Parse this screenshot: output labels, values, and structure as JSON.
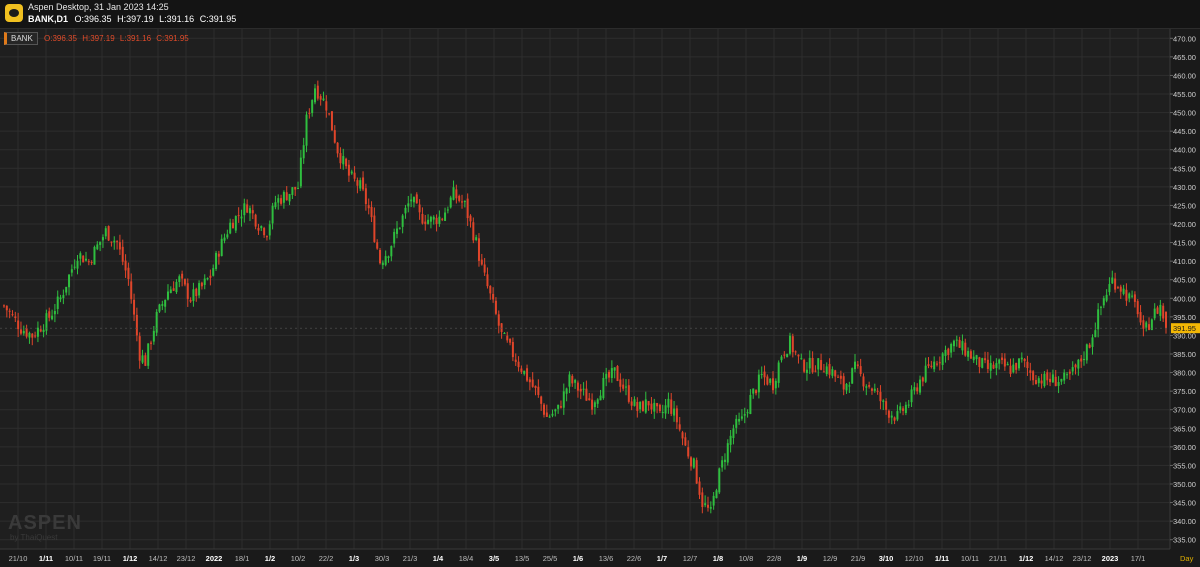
{
  "window": {
    "title": "Aspen Desktop, 31 Jan 2023 14:25",
    "symbol_label": "BANK,D1",
    "ohlc": {
      "o": "O:396.35",
      "h": "H:397.19",
      "l": "L:391.16",
      "c": "C:391.95"
    }
  },
  "legend": {
    "name": "BANK",
    "ohlc": {
      "o": "O:396.35",
      "h": "H:397.19",
      "l": "L:391.16",
      "c": "C:391.95"
    }
  },
  "watermark": {
    "brand": "ASPEN",
    "by": "by ThaiQuest"
  },
  "colors": {
    "background": "#1f1f1f",
    "grid": "#2e2e2e",
    "up": "#2fbf3f",
    "down": "#e0452a",
    "current_price_bg": "#f2b705",
    "legend_ohlc_text": "#e04b2a"
  },
  "chart_data": {
    "type": "candlestick",
    "symbol": "BANK",
    "timeframe": "D1",
    "current_price": 391.95,
    "current_price_label": "391.95",
    "ylim": [
      332.5,
      472.5
    ],
    "y_ticks": [
      335,
      340,
      345,
      350,
      355,
      360,
      365,
      370,
      375,
      380,
      385,
      390,
      395,
      400,
      405,
      410,
      415,
      420,
      425,
      430,
      435,
      440,
      445,
      450,
      455,
      460,
      465,
      470
    ],
    "y_tick_labels": [
      "335.00",
      "340.00",
      "345.00",
      "350.00",
      "355.00",
      "360.00",
      "365.00",
      "370.00",
      "375.00",
      "380.00",
      "385.00",
      "390.00",
      "395.00",
      "400.00",
      "405.00",
      "410.00",
      "415.00",
      "420.00",
      "425.00",
      "430.00",
      "435.00",
      "440.00",
      "445.00",
      "450.00",
      "455.00",
      "460.00",
      "465.00",
      "470.00"
    ],
    "x_labels": [
      {
        "label": "21/10",
        "bold": false
      },
      {
        "label": "1/11",
        "bold": true
      },
      {
        "label": "10/11",
        "bold": false
      },
      {
        "label": "19/11",
        "bold": false
      },
      {
        "label": "1/12",
        "bold": true
      },
      {
        "label": "14/12",
        "bold": false
      },
      {
        "label": "23/12",
        "bold": false
      },
      {
        "label": "2022",
        "bold": true
      },
      {
        "label": "18/1",
        "bold": false
      },
      {
        "label": "1/2",
        "bold": true
      },
      {
        "label": "10/2",
        "bold": false
      },
      {
        "label": "22/2",
        "bold": false
      },
      {
        "label": "1/3",
        "bold": true
      },
      {
        "label": "30/3",
        "bold": false
      },
      {
        "label": "21/3",
        "bold": false
      },
      {
        "label": "1/4",
        "bold": true
      },
      {
        "label": "18/4",
        "bold": false
      },
      {
        "label": "3/5",
        "bold": true
      },
      {
        "label": "13/5",
        "bold": false
      },
      {
        "label": "25/5",
        "bold": false
      },
      {
        "label": "1/6",
        "bold": true
      },
      {
        "label": "13/6",
        "bold": false
      },
      {
        "label": "22/6",
        "bold": false
      },
      {
        "label": "1/7",
        "bold": true
      },
      {
        "label": "12/7",
        "bold": false
      },
      {
        "label": "1/8",
        "bold": true
      },
      {
        "label": "10/8",
        "bold": false
      },
      {
        "label": "22/8",
        "bold": false
      },
      {
        "label": "1/9",
        "bold": true
      },
      {
        "label": "12/9",
        "bold": false
      },
      {
        "label": "21/9",
        "bold": false
      },
      {
        "label": "3/10",
        "bold": true
      },
      {
        "label": "12/10",
        "bold": false
      },
      {
        "label": "1/11",
        "bold": true
      },
      {
        "label": "10/11",
        "bold": false
      },
      {
        "label": "21/11",
        "bold": false
      },
      {
        "label": "1/12",
        "bold": true
      },
      {
        "label": "14/12",
        "bold": false
      },
      {
        "label": "23/12",
        "bold": false
      },
      {
        "label": "2023",
        "bold": true
      },
      {
        "label": "17/1",
        "bold": false
      }
    ],
    "x_axis_unit_label": "Day",
    "close_path": [
      [
        0,
        398
      ],
      [
        6,
        392
      ],
      [
        10,
        390
      ],
      [
        16,
        395
      ],
      [
        20,
        400
      ],
      [
        26,
        412
      ],
      [
        30,
        410
      ],
      [
        36,
        418
      ],
      [
        40,
        415
      ],
      [
        44,
        405
      ],
      [
        48,
        385
      ],
      [
        50,
        383
      ],
      [
        54,
        395
      ],
      [
        58,
        402
      ],
      [
        62,
        405
      ],
      [
        66,
        400
      ],
      [
        70,
        403
      ],
      [
        73,
        406
      ],
      [
        76,
        413
      ],
      [
        80,
        420
      ],
      [
        86,
        425
      ],
      [
        90,
        420
      ],
      [
        93,
        418
      ],
      [
        96,
        426
      ],
      [
        100,
        428
      ],
      [
        104,
        430
      ],
      [
        107,
        448
      ],
      [
        110,
        457
      ],
      [
        114,
        452
      ],
      [
        118,
        440
      ],
      [
        122,
        433
      ],
      [
        126,
        430
      ],
      [
        129,
        424
      ],
      [
        133,
        410
      ],
      [
        136,
        413
      ],
      [
        140,
        420
      ],
      [
        144,
        427
      ],
      [
        147,
        422
      ],
      [
        151,
        421
      ],
      [
        155,
        422
      ],
      [
        159,
        428
      ],
      [
        163,
        425
      ],
      [
        167,
        415
      ],
      [
        169,
        408
      ],
      [
        173,
        398
      ],
      [
        176,
        390
      ],
      [
        180,
        385
      ],
      [
        184,
        380
      ],
      [
        188,
        375
      ],
      [
        192,
        368
      ],
      [
        196,
        370
      ],
      [
        200,
        378
      ],
      [
        204,
        375
      ],
      [
        208,
        372
      ],
      [
        212,
        377
      ],
      [
        216,
        380
      ],
      [
        220,
        375
      ],
      [
        224,
        370
      ],
      [
        228,
        372
      ],
      [
        232,
        368
      ],
      [
        235,
        372
      ],
      [
        238,
        367
      ],
      [
        241,
        360
      ],
      [
        244,
        355
      ],
      [
        247,
        345
      ],
      [
        250,
        342
      ],
      [
        252,
        350
      ],
      [
        255,
        358
      ],
      [
        258,
        365
      ],
      [
        261,
        367
      ],
      [
        264,
        373
      ],
      [
        268,
        379
      ],
      [
        272,
        377
      ],
      [
        275,
        385
      ],
      [
        278,
        388
      ],
      [
        282,
        382
      ],
      [
        286,
        382
      ],
      [
        290,
        382
      ],
      [
        293,
        380
      ],
      [
        297,
        376
      ],
      [
        301,
        381
      ],
      [
        304,
        378
      ],
      [
        308,
        375
      ],
      [
        312,
        370
      ],
      [
        316,
        368
      ],
      [
        320,
        372
      ],
      [
        324,
        378
      ],
      [
        328,
        382
      ],
      [
        332,
        385
      ],
      [
        336,
        388
      ],
      [
        340,
        386
      ],
      [
        344,
        383
      ],
      [
        348,
        381
      ],
      [
        352,
        382
      ],
      [
        356,
        381
      ],
      [
        360,
        383
      ],
      [
        364,
        379
      ],
      [
        368,
        378
      ],
      [
        372,
        378
      ],
      [
        376,
        378
      ],
      [
        380,
        382
      ],
      [
        384,
        388
      ],
      [
        386,
        393
      ],
      [
        389,
        400
      ],
      [
        392,
        405
      ],
      [
        395,
        403
      ],
      [
        398,
        400
      ],
      [
        401,
        397
      ],
      [
        403,
        390
      ],
      [
        406,
        395
      ],
      [
        409,
        398
      ],
      [
        411,
        392
      ]
    ]
  }
}
